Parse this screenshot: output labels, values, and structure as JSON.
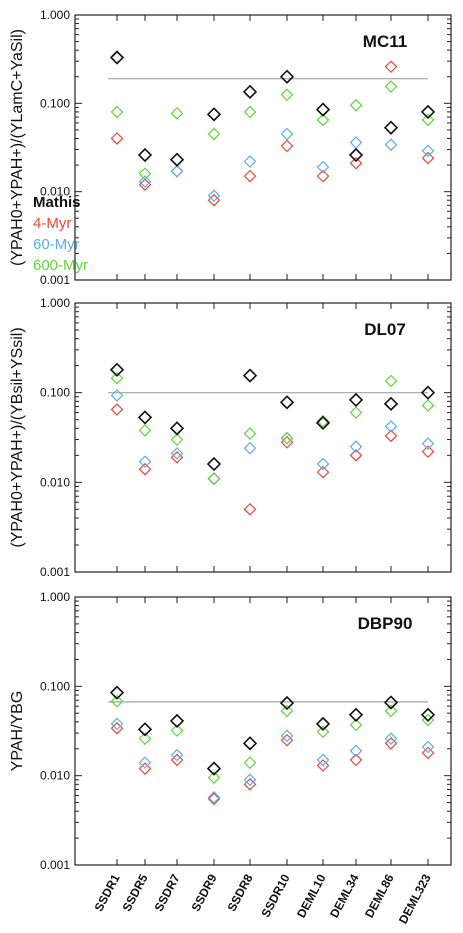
{
  "figure": {
    "categories": [
      "SSDR1",
      "SSDR5",
      "SSDR7",
      "SSDR9",
      "SSDR8",
      "SSDR10",
      "DEML10",
      "DEML34",
      "DEML86",
      "DEML323"
    ],
    "legend": [
      {
        "label": "Mathis",
        "color": "#111111"
      },
      {
        "label": "4-Myr",
        "color": "#e8483a"
      },
      {
        "label": "60-Myr",
        "color": "#5aaee8"
      },
      {
        "label": "600-Myr",
        "color": "#5fd63a"
      }
    ],
    "ref_line_color": "#9aa8a8"
  },
  "chart_data": [
    {
      "type": "scatter",
      "title": "MC11",
      "ylabel": "(YPAH0+YPAH+)/(YLamC+YaSil)",
      "yscale": "log",
      "ylim": [
        0.001,
        1.0
      ],
      "yticks": [
        "1.000",
        "0.100",
        "0.010",
        "0.001"
      ],
      "reference_line": 0.19,
      "categories": [
        "SSDR1",
        "SSDR5",
        "SSDR7",
        "SSDR9",
        "SSDR8",
        "SSDR10",
        "DEML10",
        "DEML34",
        "DEML86",
        "DEML323"
      ],
      "series": [
        {
          "name": "Mathis",
          "values": [
            0.33,
            0.026,
            0.023,
            0.075,
            0.135,
            0.2,
            0.085,
            0.026,
            0.053,
            0.08
          ]
        },
        {
          "name": "4-Myr",
          "values": [
            0.04,
            0.012,
            0.017,
            0.008,
            0.015,
            0.033,
            0.015,
            0.021,
            0.26,
            0.024
          ]
        },
        {
          "name": "60-Myr",
          "values": [
            0.33,
            0.013,
            0.017,
            0.009,
            0.022,
            0.045,
            0.019,
            0.036,
            0.034,
            0.029
          ]
        },
        {
          "name": "600-Myr",
          "values": [
            0.08,
            0.016,
            0.077,
            0.045,
            0.08,
            0.125,
            0.065,
            0.095,
            0.155,
            0.065
          ]
        }
      ]
    },
    {
      "type": "scatter",
      "title": "DL07",
      "ylabel": "(YPAH0+YPAH+)/(YBsil+YSsil)",
      "yscale": "log",
      "ylim": [
        0.001,
        1.0
      ],
      "yticks": [
        "1.000",
        "0.100",
        "0.010",
        "0.001"
      ],
      "reference_line": 0.1,
      "categories": [
        "SSDR1",
        "SSDR5",
        "SSDR7",
        "SSDR9",
        "SSDR8",
        "SSDR10",
        "DEML10",
        "DEML34",
        "DEML86",
        "DEML323"
      ],
      "series": [
        {
          "name": "Mathis",
          "values": [
            0.18,
            0.053,
            0.04,
            0.016,
            0.155,
            0.078,
            0.046,
            0.083,
            0.075,
            0.1
          ]
        },
        {
          "name": "4-Myr",
          "values": [
            0.065,
            0.014,
            0.019,
            0.011,
            0.005,
            0.028,
            0.013,
            0.02,
            0.033,
            0.022
          ]
        },
        {
          "name": "60-Myr",
          "values": [
            0.093,
            0.017,
            0.021,
            0.011,
            0.024,
            0.031,
            0.016,
            0.025,
            0.042,
            0.027
          ]
        },
        {
          "name": "600-Myr",
          "values": [
            0.145,
            0.038,
            0.03,
            0.011,
            0.035,
            0.031,
            0.048,
            0.06,
            0.135,
            0.072
          ]
        }
      ]
    },
    {
      "type": "scatter",
      "title": "DBP90",
      "ylabel": "YPAH/YBG",
      "yscale": "log",
      "ylim": [
        0.001,
        1.0
      ],
      "yticks": [
        "1.000",
        "0.100",
        "0.010",
        "0.001"
      ],
      "reference_line": 0.067,
      "xlabels": [
        "SSDR1",
        "SSDR5",
        "SSDR7",
        "SSDR9",
        "SSDR8",
        "SSDR10",
        "DEML10",
        "DEML34",
        "DEML86",
        "DEML323"
      ],
      "categories": [
        "SSDR1",
        "SSDR5",
        "SSDR7",
        "SSDR9",
        "SSDR8",
        "SSDR10",
        "DEML10",
        "DEML34",
        "DEML86",
        "DEML323"
      ],
      "series": [
        {
          "name": "Mathis",
          "values": [
            0.085,
            0.033,
            0.041,
            0.012,
            0.023,
            0.065,
            0.038,
            0.048,
            0.066,
            0.048
          ]
        },
        {
          "name": "4-Myr",
          "values": [
            0.034,
            0.012,
            0.015,
            0.0055,
            0.008,
            0.025,
            0.013,
            0.015,
            0.023,
            0.018
          ]
        },
        {
          "name": "60-Myr",
          "values": [
            0.038,
            0.014,
            0.017,
            0.0057,
            0.009,
            0.028,
            0.015,
            0.019,
            0.026,
            0.021
          ]
        },
        {
          "name": "600-Myr",
          "values": [
            0.068,
            0.026,
            0.032,
            0.0095,
            0.014,
            0.053,
            0.031,
            0.037,
            0.053,
            0.042
          ]
        }
      ]
    }
  ]
}
